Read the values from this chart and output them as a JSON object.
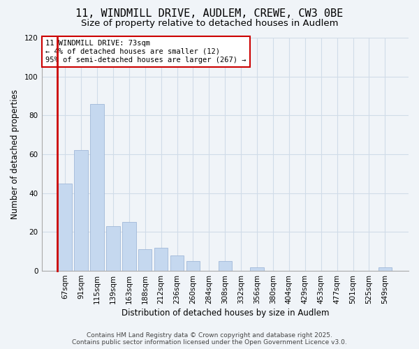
{
  "title": "11, WINDMILL DRIVE, AUDLEM, CREWE, CW3 0BE",
  "subtitle": "Size of property relative to detached houses in Audlem",
  "xlabel": "Distribution of detached houses by size in Audlem",
  "ylabel": "Number of detached properties",
  "categories": [
    "67sqm",
    "91sqm",
    "115sqm",
    "139sqm",
    "163sqm",
    "188sqm",
    "212sqm",
    "236sqm",
    "260sqm",
    "284sqm",
    "308sqm",
    "332sqm",
    "356sqm",
    "380sqm",
    "404sqm",
    "429sqm",
    "453sqm",
    "477sqm",
    "501sqm",
    "525sqm",
    "549sqm"
  ],
  "values": [
    45,
    62,
    86,
    23,
    25,
    11,
    12,
    8,
    5,
    0,
    5,
    0,
    2,
    0,
    0,
    0,
    0,
    0,
    0,
    0,
    2
  ],
  "bar_color": "#c5d8ef",
  "bar_edgecolor": "#a0b8d8",
  "highlight_color": "#cc0000",
  "ylim": [
    0,
    120
  ],
  "yticks": [
    0,
    20,
    40,
    60,
    80,
    100,
    120
  ],
  "annotation_title": "11 WINDMILL DRIVE: 73sqm",
  "annotation_line2": "← 4% of detached houses are smaller (12)",
  "annotation_line3": "95% of semi-detached houses are larger (267) →",
  "annotation_box_color": "#ffffff",
  "annotation_border_color": "#cc0000",
  "footer_line1": "Contains HM Land Registry data © Crown copyright and database right 2025.",
  "footer_line2": "Contains public sector information licensed under the Open Government Licence v3.0.",
  "background_color": "#f0f4f8",
  "grid_color": "#d0dce8",
  "title_fontsize": 11,
  "subtitle_fontsize": 9.5,
  "axis_label_fontsize": 8.5,
  "tick_fontsize": 7.5,
  "annotation_fontsize": 7.5,
  "footer_fontsize": 6.5
}
